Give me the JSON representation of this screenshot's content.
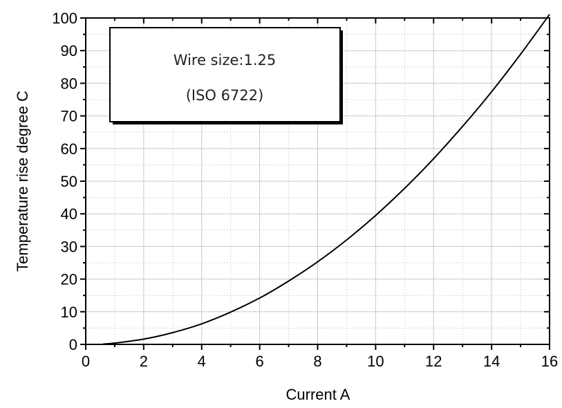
{
  "chart_data": {
    "type": "line",
    "title": "",
    "xlabel": "Current  A",
    "ylabel": "Temperature rise  degree C",
    "xlim": [
      0,
      16
    ],
    "ylim": [
      0,
      100
    ],
    "x_ticks": [
      "0",
      "2",
      "4",
      "6",
      "8",
      "10",
      "12",
      "14",
      "16"
    ],
    "y_ticks": [
      "0",
      "10",
      "20",
      "30",
      "40",
      "50",
      "60",
      "70",
      "80",
      "90",
      "100"
    ],
    "grid": true,
    "series": [
      {
        "x": [
          0.6,
          1,
          2,
          3,
          4,
          5,
          6,
          7,
          8,
          9,
          10,
          11,
          12,
          13,
          14,
          15,
          16
        ],
        "y": [
          0.1,
          0.4,
          1.6,
          3.6,
          6.3,
          9.9,
          14.2,
          19.4,
          25.3,
          32.0,
          39.5,
          47.8,
          56.9,
          66.8,
          77.4,
          88.9,
          101.1
        ],
        "color": "#000000"
      }
    ],
    "annotations": [
      "Wire size:1.25",
      "(ISO  6722)"
    ]
  }
}
